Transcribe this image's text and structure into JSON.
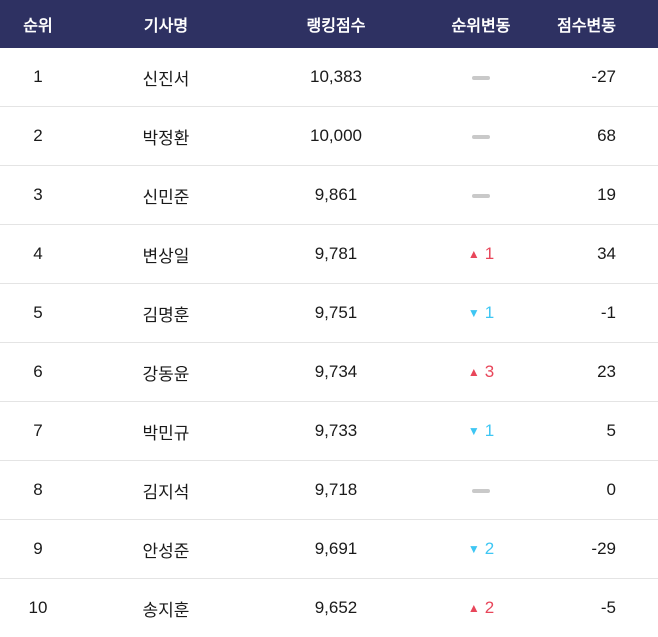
{
  "colors": {
    "header_bg": "#2e3162",
    "up_change": "#e8465a",
    "down_change": "#3ec6f3",
    "no_change_dash": "#c9c9c9",
    "row_divider": "#e4e4e4",
    "body_text": "#1a1a1a"
  },
  "chart_data": {
    "type": "table",
    "title": "",
    "columns": [
      "순위",
      "기사명",
      "랭킹점수",
      "순위변동",
      "점수변동"
    ],
    "rows": [
      {
        "rank": "1",
        "name": "신진서",
        "score": "10,383",
        "rank_change_dir": "none",
        "rank_change": "",
        "score_change": "-27"
      },
      {
        "rank": "2",
        "name": "박정환",
        "score": "10,000",
        "rank_change_dir": "none",
        "rank_change": "",
        "score_change": "68"
      },
      {
        "rank": "3",
        "name": "신민준",
        "score": "9,861",
        "rank_change_dir": "none",
        "rank_change": "",
        "score_change": "19"
      },
      {
        "rank": "4",
        "name": "변상일",
        "score": "9,781",
        "rank_change_dir": "up",
        "rank_change": "1",
        "score_change": "34"
      },
      {
        "rank": "5",
        "name": "김명훈",
        "score": "9,751",
        "rank_change_dir": "down",
        "rank_change": "1",
        "score_change": "-1"
      },
      {
        "rank": "6",
        "name": "강동윤",
        "score": "9,734",
        "rank_change_dir": "up",
        "rank_change": "3",
        "score_change": "23"
      },
      {
        "rank": "7",
        "name": "박민규",
        "score": "9,733",
        "rank_change_dir": "down",
        "rank_change": "1",
        "score_change": "5"
      },
      {
        "rank": "8",
        "name": "김지석",
        "score": "9,718",
        "rank_change_dir": "none",
        "rank_change": "",
        "score_change": "0"
      },
      {
        "rank": "9",
        "name": "안성준",
        "score": "9,691",
        "rank_change_dir": "down",
        "rank_change": "2",
        "score_change": "-29"
      },
      {
        "rank": "10",
        "name": "송지훈",
        "score": "9,652",
        "rank_change_dir": "up",
        "rank_change": "2",
        "score_change": "-5"
      }
    ]
  }
}
